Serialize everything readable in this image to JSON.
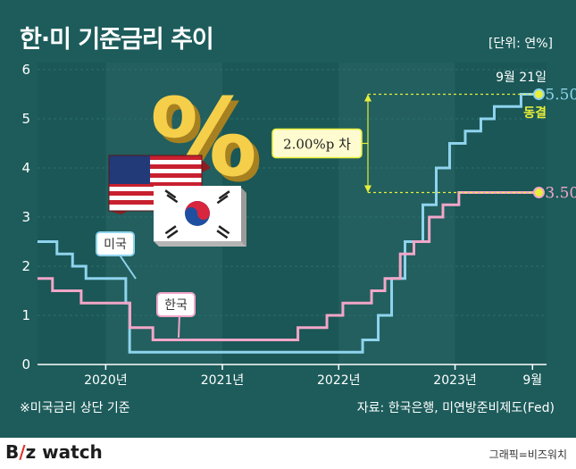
{
  "title": "한·미 기준금리 추이",
  "unit": "[단위: 연%]",
  "note": "※미국금리 상단 기준",
  "source": "자료: 한국은행, 미연방준비제도(Fed)",
  "footer": {
    "brand_prefix": "B",
    "brand_mark": "/",
    "brand_rest": "z watch",
    "credit": "그래픽=비즈워치"
  },
  "colors": {
    "background": "#1d5c5b",
    "us": "#8fd4ee",
    "korea": "#f2a6c8",
    "annotation": "#e8ef3a"
  },
  "illustration": {
    "icons": [
      "percent-sign-icon",
      "us-flag-icon",
      "korea-flag-icon"
    ]
  },
  "chart_data": {
    "type": "line",
    "title": "한·미 기준금리 추이",
    "unit": "연%",
    "ylim": [
      0,
      6
    ],
    "yticks": [
      0,
      1,
      2,
      3,
      4,
      5,
      6
    ],
    "xlim": [
      "2019-06-01",
      "2023-10-15"
    ],
    "xtick_labels": [
      {
        "date": "2020-01-01",
        "label": "2020년"
      },
      {
        "date": "2021-01-01",
        "label": "2021년"
      },
      {
        "date": "2022-01-01",
        "label": "2022년"
      },
      {
        "date": "2023-01-01",
        "label": "2023년"
      },
      {
        "date": "2023-09-01",
        "label": "9월"
      }
    ],
    "grid": "vertical bands",
    "series": [
      {
        "name": "미국",
        "color": "#8fd4ee",
        "step": true,
        "points": [
          [
            "2019-06-01",
            2.5
          ],
          [
            "2019-08-01",
            2.25
          ],
          [
            "2019-09-19",
            2.0
          ],
          [
            "2019-10-31",
            1.75
          ],
          [
            "2020-03-04",
            1.25
          ],
          [
            "2020-03-16",
            0.25
          ],
          [
            "2022-03-17",
            0.5
          ],
          [
            "2022-05-05",
            1.0
          ],
          [
            "2022-06-16",
            1.75
          ],
          [
            "2022-07-28",
            2.5
          ],
          [
            "2022-09-22",
            3.25
          ],
          [
            "2022-11-03",
            4.0
          ],
          [
            "2022-12-15",
            4.5
          ],
          [
            "2023-02-02",
            4.75
          ],
          [
            "2023-03-23",
            5.0
          ],
          [
            "2023-05-04",
            5.25
          ],
          [
            "2023-07-27",
            5.5
          ],
          [
            "2023-09-21",
            5.5
          ]
        ],
        "end_label": "5.50"
      },
      {
        "name": "한국",
        "color": "#f2a6c8",
        "step": true,
        "points": [
          [
            "2019-06-01",
            1.75
          ],
          [
            "2019-07-18",
            1.5
          ],
          [
            "2019-10-16",
            1.25
          ],
          [
            "2020-03-17",
            0.75
          ],
          [
            "2020-05-28",
            0.5
          ],
          [
            "2021-08-26",
            0.75
          ],
          [
            "2021-11-25",
            1.0
          ],
          [
            "2022-01-14",
            1.25
          ],
          [
            "2022-04-14",
            1.5
          ],
          [
            "2022-05-26",
            1.75
          ],
          [
            "2022-07-13",
            2.25
          ],
          [
            "2022-08-25",
            2.5
          ],
          [
            "2022-10-12",
            3.0
          ],
          [
            "2022-11-24",
            3.25
          ],
          [
            "2023-01-13",
            3.5
          ],
          [
            "2023-09-21",
            3.5
          ]
        ],
        "end_label": "3.50"
      }
    ],
    "annotations": {
      "gap_label": "2.00%p 차",
      "end_date_label": "9월 21일",
      "freeze_label": "동결"
    }
  }
}
